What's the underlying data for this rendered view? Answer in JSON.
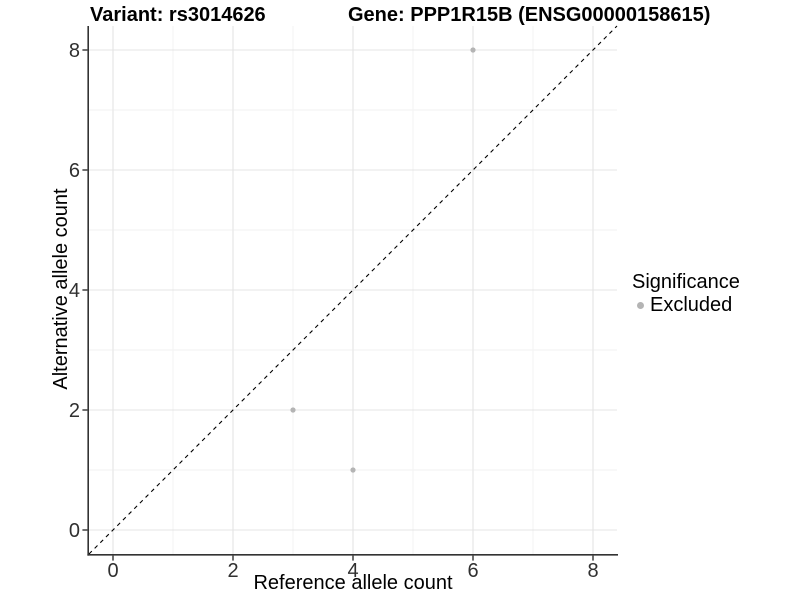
{
  "chart_data": {
    "type": "scatter",
    "titles": {
      "left": "Variant: rs3014626",
      "right": "Gene: PPP1R15B (ENSG00000158615)"
    },
    "xlabel": "Reference allele count",
    "ylabel": "Alternative allele count",
    "xlim": [
      -0.4,
      8.4
    ],
    "ylim": [
      -0.4,
      8.4
    ],
    "x_ticks": [
      0,
      2,
      4,
      6,
      8
    ],
    "y_ticks": [
      0,
      2,
      4,
      6,
      8
    ],
    "x_minor": [
      1,
      3,
      5,
      7
    ],
    "y_minor": [
      1,
      3,
      5,
      7
    ],
    "series": [
      {
        "name": "Excluded",
        "color": "#b4b4b4",
        "marker": "circle",
        "points": [
          [
            3,
            2
          ],
          [
            4,
            1
          ],
          [
            6,
            8
          ]
        ]
      }
    ],
    "reference_line": {
      "type": "identity",
      "from": [
        -0.4,
        -0.4
      ],
      "to": [
        8.4,
        8.4
      ],
      "style": "dashed",
      "color": "#000000"
    },
    "legend": {
      "title": "Significance",
      "position": "right",
      "items": [
        {
          "label": "Excluded",
          "color": "#b4b4b4"
        }
      ]
    },
    "grid": {
      "major_color": "#e4e4e4",
      "minor_color": "#f2f2f2",
      "background": "#ffffff"
    },
    "axis": {
      "line_color": "#333333",
      "tick_color": "#333333",
      "label_color": "#303030",
      "tick_font_size": 20
    }
  }
}
